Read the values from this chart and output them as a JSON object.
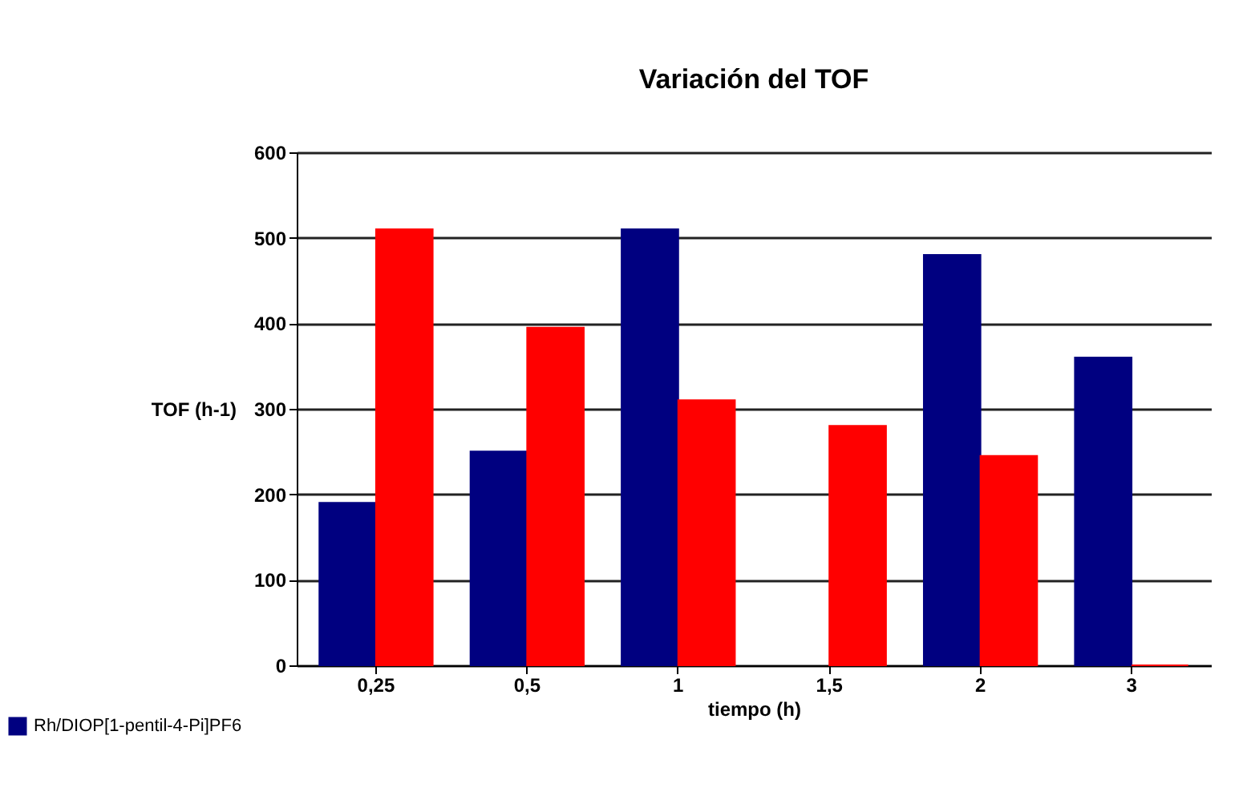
{
  "chart_data": {
    "type": "bar",
    "title": "Variación del TOF",
    "xlabel": "tiempo (h)",
    "ylabel": "TOF (h-1)",
    "categories": [
      "0,25",
      "0,5",
      "1",
      "1,5",
      "2",
      "3"
    ],
    "series": [
      {
        "name": "Rh/DIOP[1-pentil-4-Pi]PF6",
        "color": "#000080",
        "values": [
          190,
          250,
          510,
          null,
          480,
          360
        ]
      },
      {
        "color": "#ff0000",
        "values": [
          510,
          395,
          310,
          280,
          245,
          0
        ]
      }
    ],
    "ylim": [
      0,
      600
    ],
    "yticks": [
      0,
      100,
      200,
      300,
      400,
      500,
      600
    ],
    "grid": "y",
    "legend": "bottom left"
  }
}
